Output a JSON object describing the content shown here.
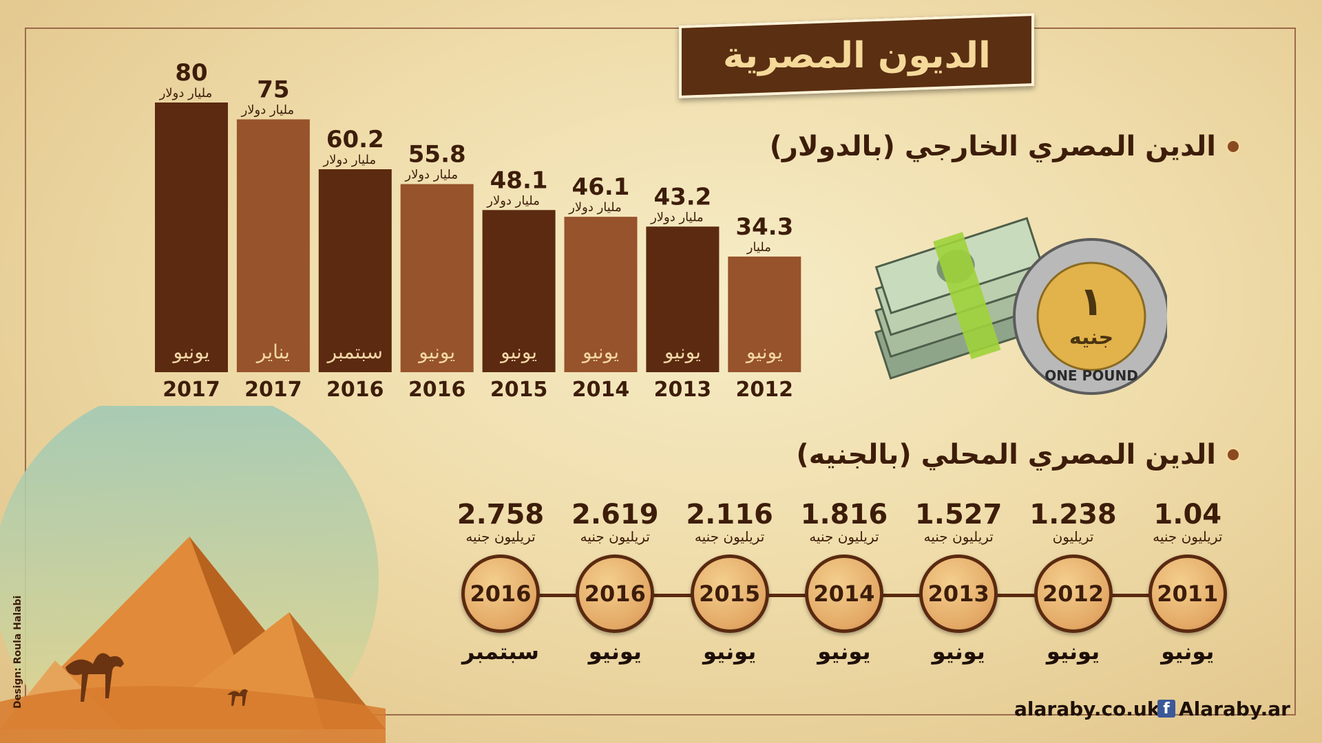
{
  "title": "الديون المصرية",
  "external_heading": "الدين المصري الخارجي (بالدولار)",
  "local_heading": "الدين المصري المحلي (بالجنيه)",
  "chart_data": [
    {
      "type": "bar",
      "categories": [
        "2017 يونيو",
        "2017 يناير",
        "2016 سبتمبر",
        "2016 يونيو",
        "2015 يونيو",
        "2014 يونيو",
        "2013 يونيو",
        "2012 يونيو"
      ],
      "years": [
        "2017",
        "2017",
        "2016",
        "2016",
        "2015",
        "2014",
        "2013",
        "2012"
      ],
      "months": [
        "يونيو",
        "يناير",
        "سبتمبر",
        "يونيو",
        "يونيو",
        "يونيو",
        "يونيو",
        "يونيو"
      ],
      "values": [
        80,
        75,
        60.2,
        55.8,
        48.1,
        46.1,
        43.2,
        34.3
      ],
      "value_labels": [
        "80",
        "75",
        "60.2",
        "55.8",
        "48.1",
        "46.1",
        "43.2",
        "34.3"
      ],
      "units": [
        "مليار دولار",
        "مليار دولار",
        "مليار دولار",
        "مليار دولار",
        "مليار دولار",
        "مليار دولار",
        "مليار دولار",
        "مليار"
      ],
      "colors": [
        "#5b2a10",
        "#97532b",
        "#5b2a10",
        "#97532b",
        "#5b2a10",
        "#97532b",
        "#5b2a10",
        "#97532b"
      ]
    },
    {
      "type": "timeline",
      "years": [
        "2016",
        "2016",
        "2015",
        "2014",
        "2013",
        "2012",
        "2011"
      ],
      "months": [
        "سبتمبر",
        "يونيو",
        "يونيو",
        "يونيو",
        "يونيو",
        "يونيو",
        "يونيو"
      ],
      "values": [
        2.758,
        2.619,
        2.116,
        1.816,
        1.527,
        1.238,
        1.04
      ],
      "value_labels": [
        "2.758",
        "2.619",
        "2.116",
        "1.816",
        "1.527",
        "1.238",
        "1.04"
      ],
      "units": [
        "تريليون جنيه",
        "تريليون جنيه",
        "تريليون جنيه",
        "تريليون جنيه",
        "تريليون جنيه",
        "تريليون",
        "تريليون جنيه"
      ]
    }
  ],
  "coin": {
    "text": "ONE POUND",
    "numeral": "١",
    "word": "جنيه"
  },
  "footer": {
    "site": "alaraby.co.uk",
    "facebook": "Alaraby.ar",
    "fb_icon": "f"
  },
  "credit": "Design: Roula Halabi"
}
